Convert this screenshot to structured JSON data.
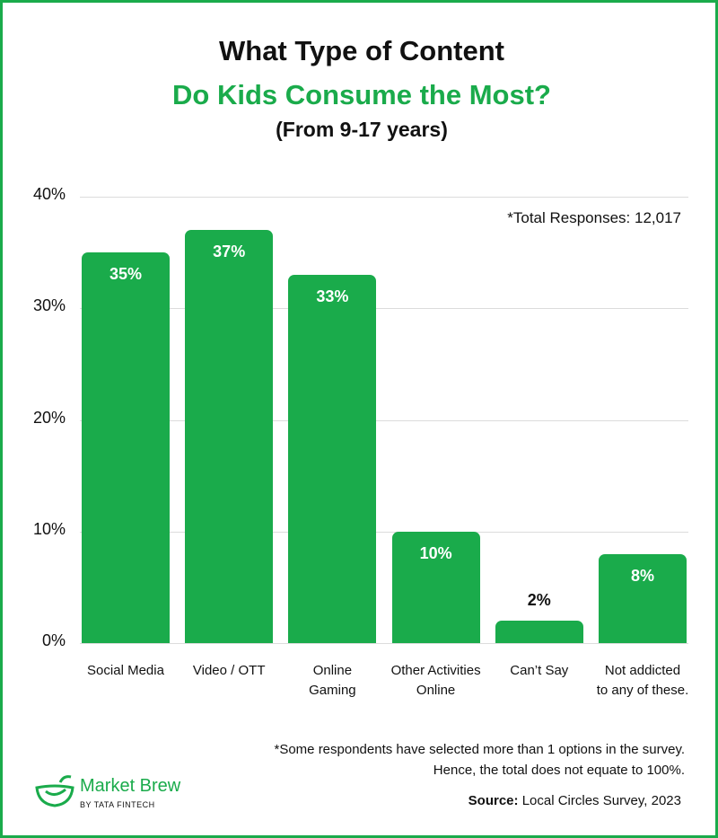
{
  "header": {
    "title_line1": "What Type of Content",
    "title_line2": "Do Kids Consume the Most?",
    "subtitle": "(From 9-17 years)"
  },
  "note_total": "*Total Responses: 12,017",
  "footnote": {
    "line1": "*Some respondents have selected more than 1 options in the survey.",
    "line2": "Hence, the total does not equate to 100%."
  },
  "source": {
    "label": "Source:",
    "text": "Local Circles Survey, 2023"
  },
  "logo": {
    "name": "Market Brew",
    "by": "BY TATA FINTECH"
  },
  "colors": {
    "accent": "#1aab4b",
    "text": "#111111",
    "grid": "#dcdcdc"
  },
  "chart_data": {
    "type": "bar",
    "categories": [
      [
        "Social Media"
      ],
      [
        "Video / OTT"
      ],
      [
        "Online",
        "Gaming"
      ],
      [
        "Other Activities",
        "Online"
      ],
      [
        "Can’t Say"
      ],
      [
        "Not addicted",
        "to any of these."
      ]
    ],
    "values": [
      35,
      37,
      33,
      10,
      2,
      8
    ],
    "value_labels": [
      "35%",
      "37%",
      "33%",
      "10%",
      "2%",
      "8%"
    ],
    "yticks": [
      "0%",
      "10%",
      "20%",
      "30%",
      "40%"
    ],
    "ylim": [
      0,
      40
    ],
    "grid": true
  }
}
